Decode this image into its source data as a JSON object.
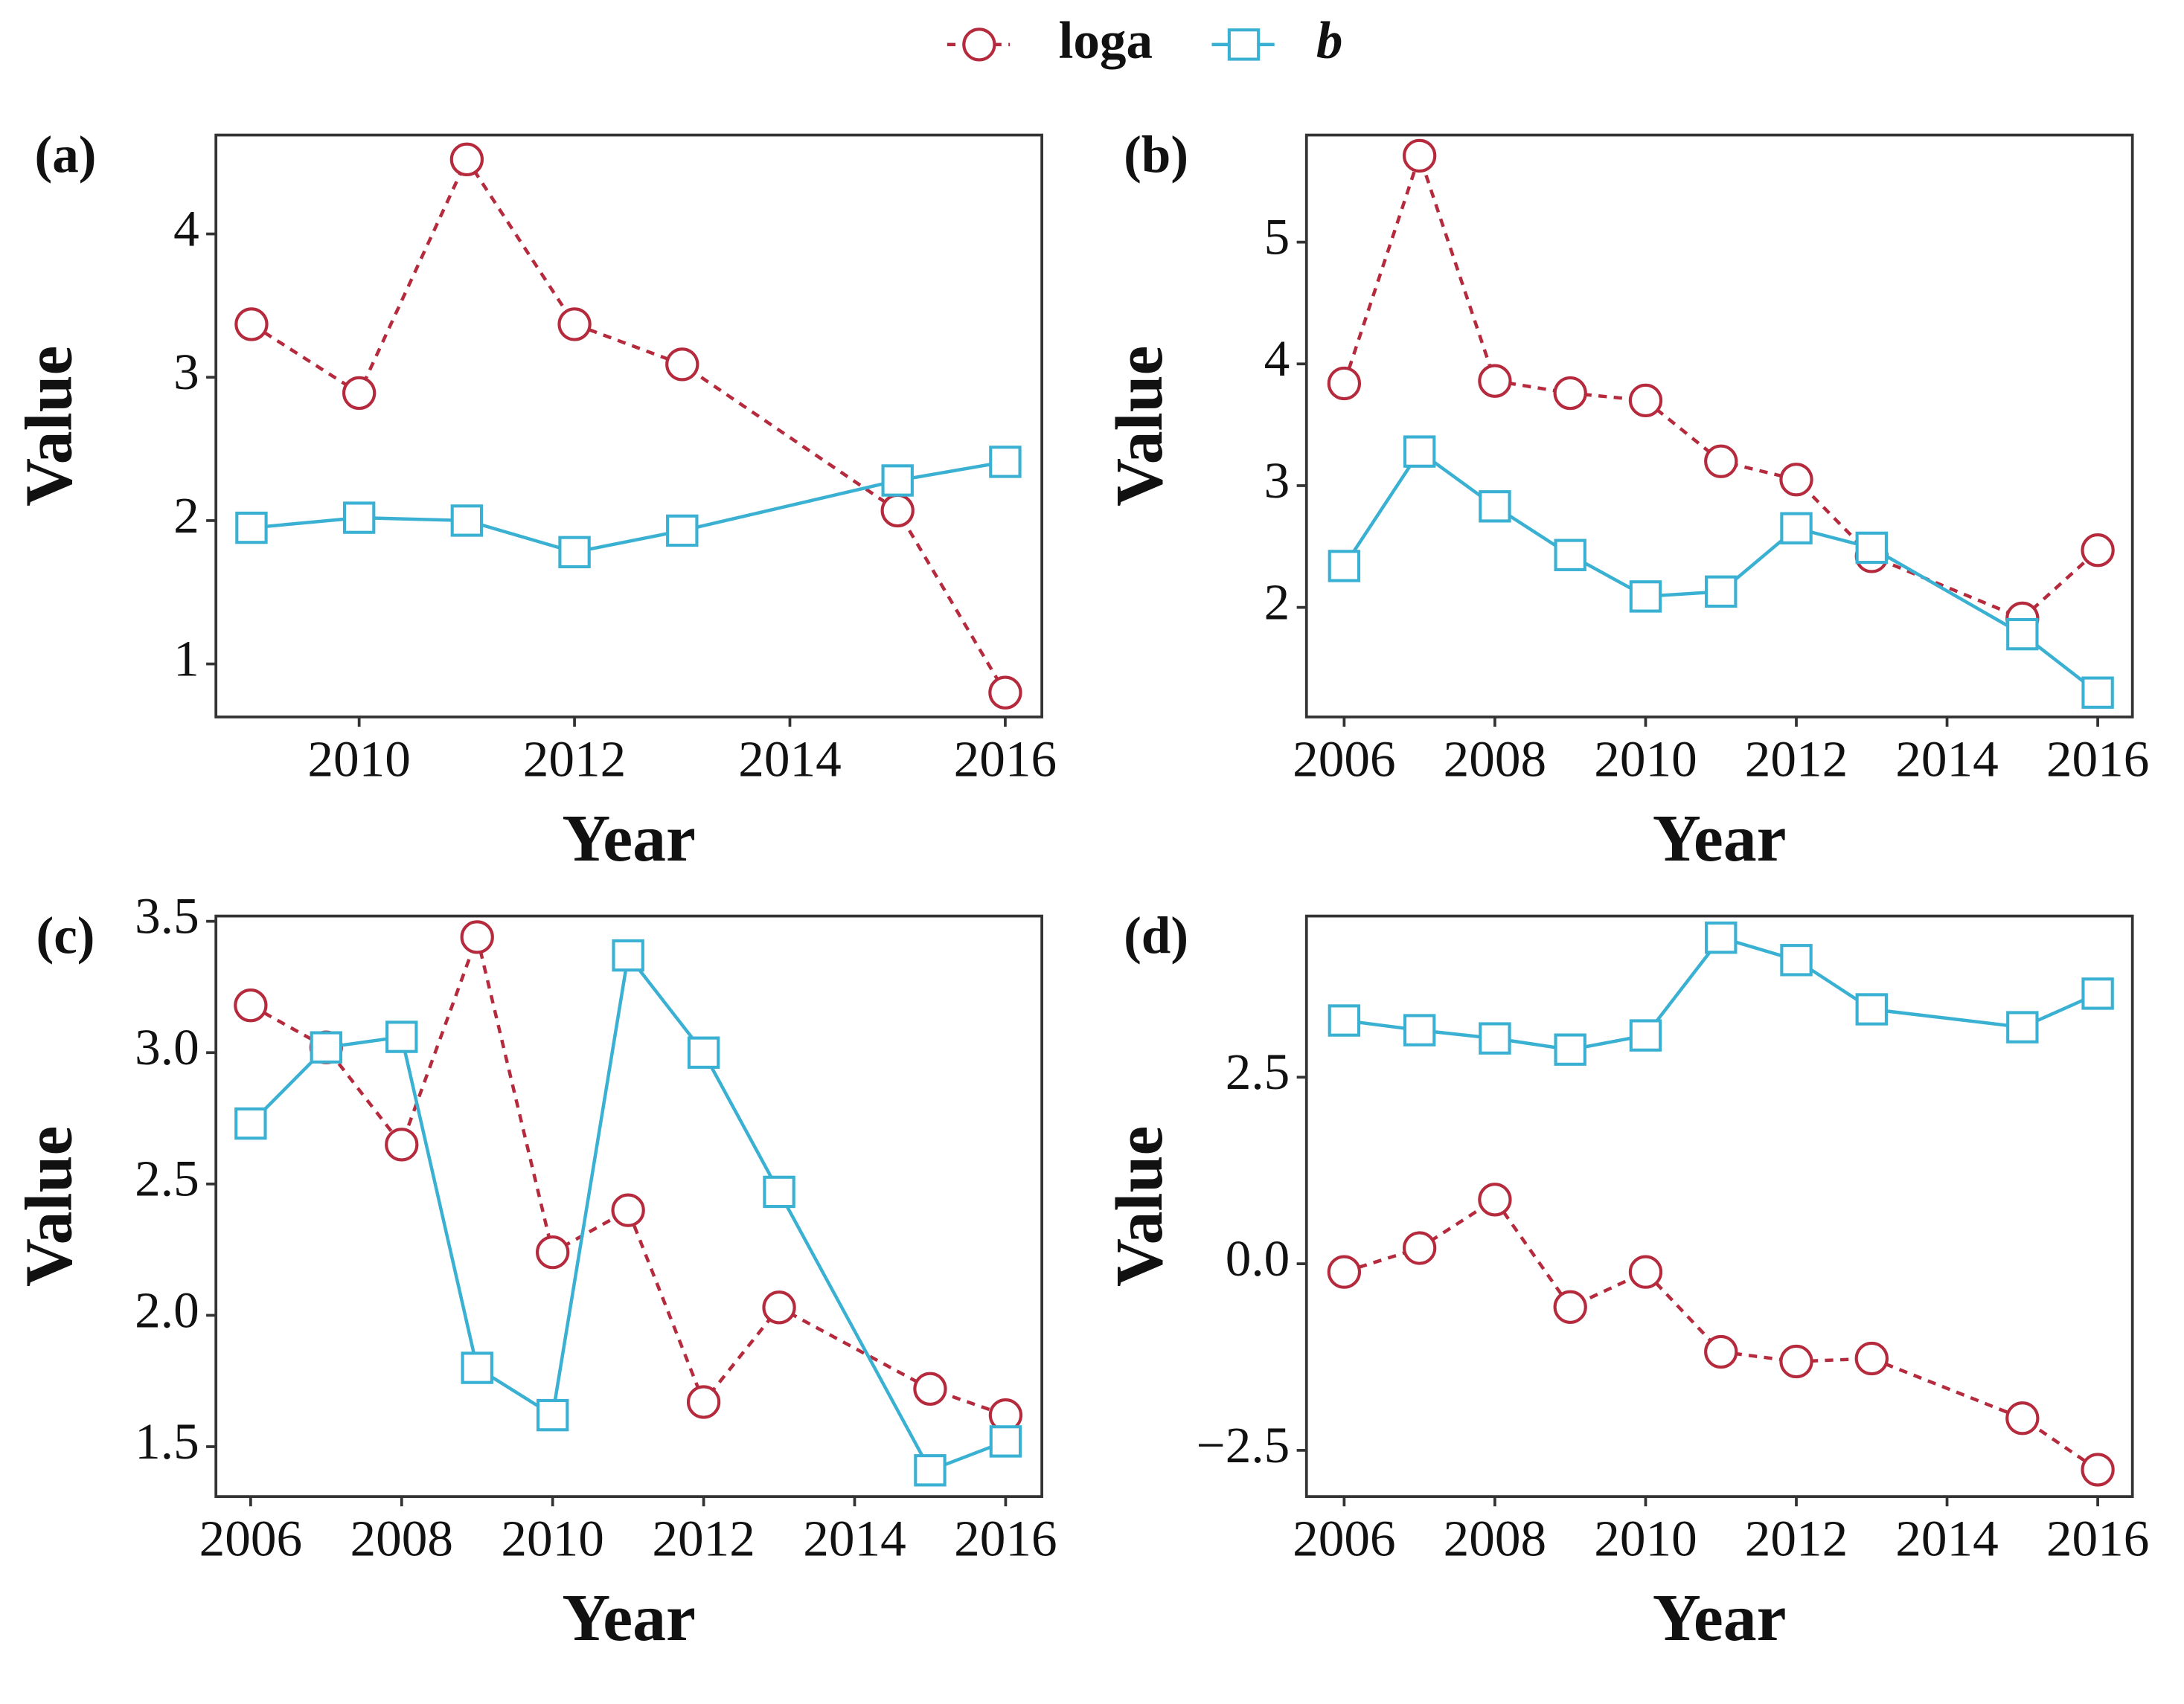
{
  "chart_data": [
    {
      "type": "line",
      "label": "(a)",
      "x_label": "Year",
      "y_label": "Value",
      "x": [
        2009,
        2010,
        2011,
        2012,
        2013,
        2015,
        2016
      ],
      "series": [
        {
          "name": "loga",
          "color": "#b52a3c",
          "linestyle": "dashed",
          "marker": "circle",
          "values": [
            3.37,
            2.89,
            4.52,
            3.37,
            3.09,
            2.07,
            0.8
          ]
        },
        {
          "name": "b",
          "color": "#3ab1d2",
          "linestyle": "solid",
          "marker": "square",
          "values": [
            1.95,
            2.02,
            2.0,
            1.78,
            1.93,
            2.28,
            2.41
          ]
        }
      ],
      "xlim": [
        2008.67,
        2016.34
      ],
      "xticks": [
        2010,
        2012,
        2014,
        2016
      ],
      "ylim": [
        0.63,
        4.69
      ],
      "yticks": [
        1,
        2,
        3,
        4
      ]
    },
    {
      "type": "line",
      "label": "(b)",
      "x_label": "Year",
      "y_label": "Value",
      "x": [
        2006,
        2007,
        2008,
        2009,
        2010,
        2011,
        2012,
        2013,
        2015,
        2016
      ],
      "series": [
        {
          "name": "loga",
          "color": "#b52a3c",
          "linestyle": "dashed",
          "marker": "circle",
          "values": [
            3.84,
            5.71,
            3.86,
            3.76,
            3.7,
            3.2,
            3.05,
            2.42,
            1.91,
            2.47
          ]
        },
        {
          "name": "b",
          "color": "#3ab1d2",
          "linestyle": "solid",
          "marker": "square",
          "values": [
            2.34,
            3.28,
            2.83,
            2.43,
            2.09,
            2.13,
            2.65,
            2.49,
            1.78,
            1.3
          ]
        }
      ],
      "xlim": [
        2005.5,
        2016.46
      ],
      "xticks": [
        2006,
        2008,
        2010,
        2012,
        2014,
        2016
      ],
      "ylim": [
        1.1,
        5.88
      ],
      "yticks": [
        2,
        3,
        4,
        5
      ]
    },
    {
      "type": "line",
      "label": "(c)",
      "x_label": "Year",
      "y_label": "Value",
      "x": [
        2006,
        2007,
        2008,
        2009,
        2010,
        2011,
        2012,
        2013,
        2015,
        2016
      ],
      "series": [
        {
          "name": "loga",
          "color": "#b52a3c",
          "linestyle": "dashed",
          "marker": "circle",
          "values": [
            3.18,
            3.02,
            2.65,
            3.44,
            2.24,
            2.4,
            1.67,
            2.03,
            1.72,
            1.62
          ]
        },
        {
          "name": "b",
          "color": "#3ab1d2",
          "linestyle": "solid",
          "marker": "square",
          "values": [
            2.73,
            3.02,
            3.06,
            1.8,
            1.62,
            3.37,
            3.0,
            2.47,
            1.41,
            1.52
          ]
        }
      ],
      "xlim": [
        2005.54,
        2016.48
      ],
      "xticks": [
        2006,
        2008,
        2010,
        2012,
        2014,
        2016
      ],
      "ylim": [
        1.31,
        3.52
      ],
      "yticks": [
        1.5,
        {
          "value": 2,
          "label": "2.0"
        },
        2.5,
        {
          "value": 3,
          "label": "3.0"
        },
        3.5
      ]
    },
    {
      "type": "line",
      "label": "(d)",
      "x_label": "Year",
      "y_label": "Value",
      "x": [
        2006,
        2007,
        2008,
        2009,
        2010,
        2011,
        2012,
        2013,
        2015,
        2016
      ],
      "series": [
        {
          "name": "loga",
          "color": "#b52a3c",
          "linestyle": "dashed",
          "marker": "circle",
          "values": [
            -0.11,
            0.21,
            0.86,
            -0.58,
            -0.11,
            -1.18,
            -1.31,
            -1.27,
            -2.07,
            -2.76
          ]
        },
        {
          "name": "b",
          "color": "#3ab1d2",
          "linestyle": "solid",
          "marker": "square",
          "values": [
            3.26,
            3.13,
            3.02,
            2.87,
            3.06,
            4.37,
            4.07,
            3.41,
            3.17,
            3.62
          ]
        }
      ],
      "xlim": [
        2005.5,
        2016.46
      ],
      "xticks": [
        2006,
        2008,
        2010,
        2012,
        2014,
        2016
      ],
      "ylim": [
        -3.12,
        4.66
      ],
      "yticks": [
        {
          "value": -2.5,
          "label": "−2.5"
        },
        {
          "value": 0,
          "label": "0.0"
        },
        2.5
      ]
    }
  ]
}
